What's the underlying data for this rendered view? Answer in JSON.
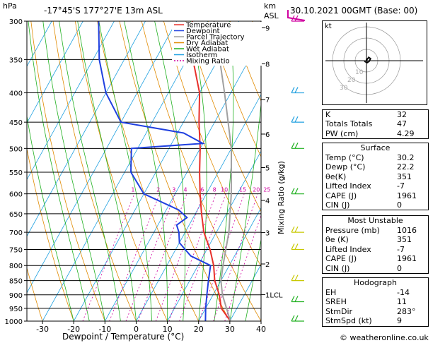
{
  "header": {
    "hpa_label": "hPa",
    "location": "-17°45'S 177°27'E 13m ASL",
    "km_label": "km",
    "asl_label": "ASL",
    "datetime": "30.10.2021 00GMT (Base: 00)"
  },
  "axes": {
    "x_label": "Dewpoint / Temperature (°C)",
    "x_ticks": [
      "-30",
      "-20",
      "-10",
      "0",
      "10",
      "20",
      "30",
      "40"
    ],
    "p_ticks": [
      "300",
      "350",
      "400",
      "450",
      "500",
      "550",
      "600",
      "650",
      "700",
      "750",
      "800",
      "850",
      "900",
      "950",
      "1000"
    ],
    "km_ticks": [
      "9",
      "8",
      "7",
      "6",
      "5",
      "4",
      "3",
      "2",
      "1LCL"
    ],
    "mixing_ratio_label": "Mixing Ratio (g/kg)",
    "mixing_ratio_ticks": [
      "1",
      "2",
      "3",
      "4",
      "6",
      "8",
      "10",
      "15",
      "20",
      "25"
    ]
  },
  "legend": [
    "Temperature",
    "Dewpoint",
    "Parcel Trajectory",
    "Dry Adiabat",
    "Wet Adiabat",
    "Isotherm",
    "Mixing Ratio"
  ],
  "colors": {
    "temperature": "#e8302a",
    "dewpoint": "#2040e0",
    "parcel": "#a0a0a0",
    "dry_adiabat": "#e08a00",
    "wet_adiabat": "#20b020",
    "isotherm": "#1ea0e0",
    "mixing_ratio": "#d000a0",
    "wind_barb": "#20a0e0"
  },
  "hodograph": {
    "label": "kt",
    "ring_labels": [
      "10",
      "20",
      "30"
    ]
  },
  "indices": {
    "basic": [
      {
        "label": "K",
        "value": "32"
      },
      {
        "label": "Totals Totals",
        "value": "47"
      },
      {
        "label": "PW (cm)",
        "value": "4.29"
      }
    ],
    "surface_title": "Surface",
    "surface": [
      {
        "label": "Temp (°C)",
        "value": "30.2"
      },
      {
        "label": "Dewp (°C)",
        "value": "22.2"
      },
      {
        "label": "θe(K)",
        "value": "351"
      },
      {
        "label": "Lifted Index",
        "value": "-7"
      },
      {
        "label": "CAPE (J)",
        "value": "1961"
      },
      {
        "label": "CIN (J)",
        "value": "0"
      }
    ],
    "mu_title": "Most Unstable",
    "most_unstable": [
      {
        "label": "Pressure (mb)",
        "value": "1016"
      },
      {
        "label": "θe (K)",
        "value": "351"
      },
      {
        "label": "Lifted Index",
        "value": "-7"
      },
      {
        "label": "CAPE (J)",
        "value": "1961"
      },
      {
        "label": "CIN (J)",
        "value": "0"
      }
    ],
    "hodo_title": "Hodograph",
    "hodograph": [
      {
        "label": "EH",
        "value": "-14"
      },
      {
        "label": "SREH",
        "value": "11"
      },
      {
        "label": "StmDir",
        "value": "283°"
      },
      {
        "label": "StmSpd (kt)",
        "value": "9"
      }
    ]
  },
  "footer": "© weatheronline.co.uk",
  "chart_data": {
    "type": "line",
    "title": "-17°45'S 177°27'E 13m ASL",
    "xlabel": "Dewpoint / Temperature (°C)",
    "ylabel": "hPa",
    "xlim": [
      -35,
      40
    ],
    "ylim": [
      1000,
      300
    ],
    "y_scale": "log",
    "grid": true,
    "legend_placement": "top-left",
    "series": [
      {
        "name": "Temperature",
        "pressure": [
          1000,
          950,
          900,
          850,
          800,
          750,
          700,
          650,
          600,
          550,
          500,
          450,
          400,
          350,
          300
        ],
        "values": [
          30.2,
          25,
          22,
          18,
          15,
          11,
          6,
          2,
          -2,
          -6,
          -10,
          -15,
          -20,
          -28,
          -35
        ]
      },
      {
        "name": "Dewpoint",
        "pressure": [
          1000,
          950,
          900,
          850,
          800,
          770,
          750,
          730,
          700,
          680,
          660,
          640,
          600,
          550,
          500,
          490,
          470,
          450,
          400,
          350,
          300
        ],
        "values": [
          22.2,
          20,
          18,
          16,
          14,
          6,
          3,
          0,
          -2,
          -4,
          -2,
          -6,
          -20,
          -28,
          -32,
          -10,
          -18,
          -40,
          -50,
          -58,
          -65
        ]
      },
      {
        "name": "Parcel Trajectory",
        "pressure": [
          1000,
          900,
          850,
          800,
          700,
          600,
          500,
          400,
          300
        ],
        "values": [
          30.2,
          23,
          20,
          18,
          14,
          8,
          0,
          -12,
          -28
        ]
      }
    ]
  }
}
